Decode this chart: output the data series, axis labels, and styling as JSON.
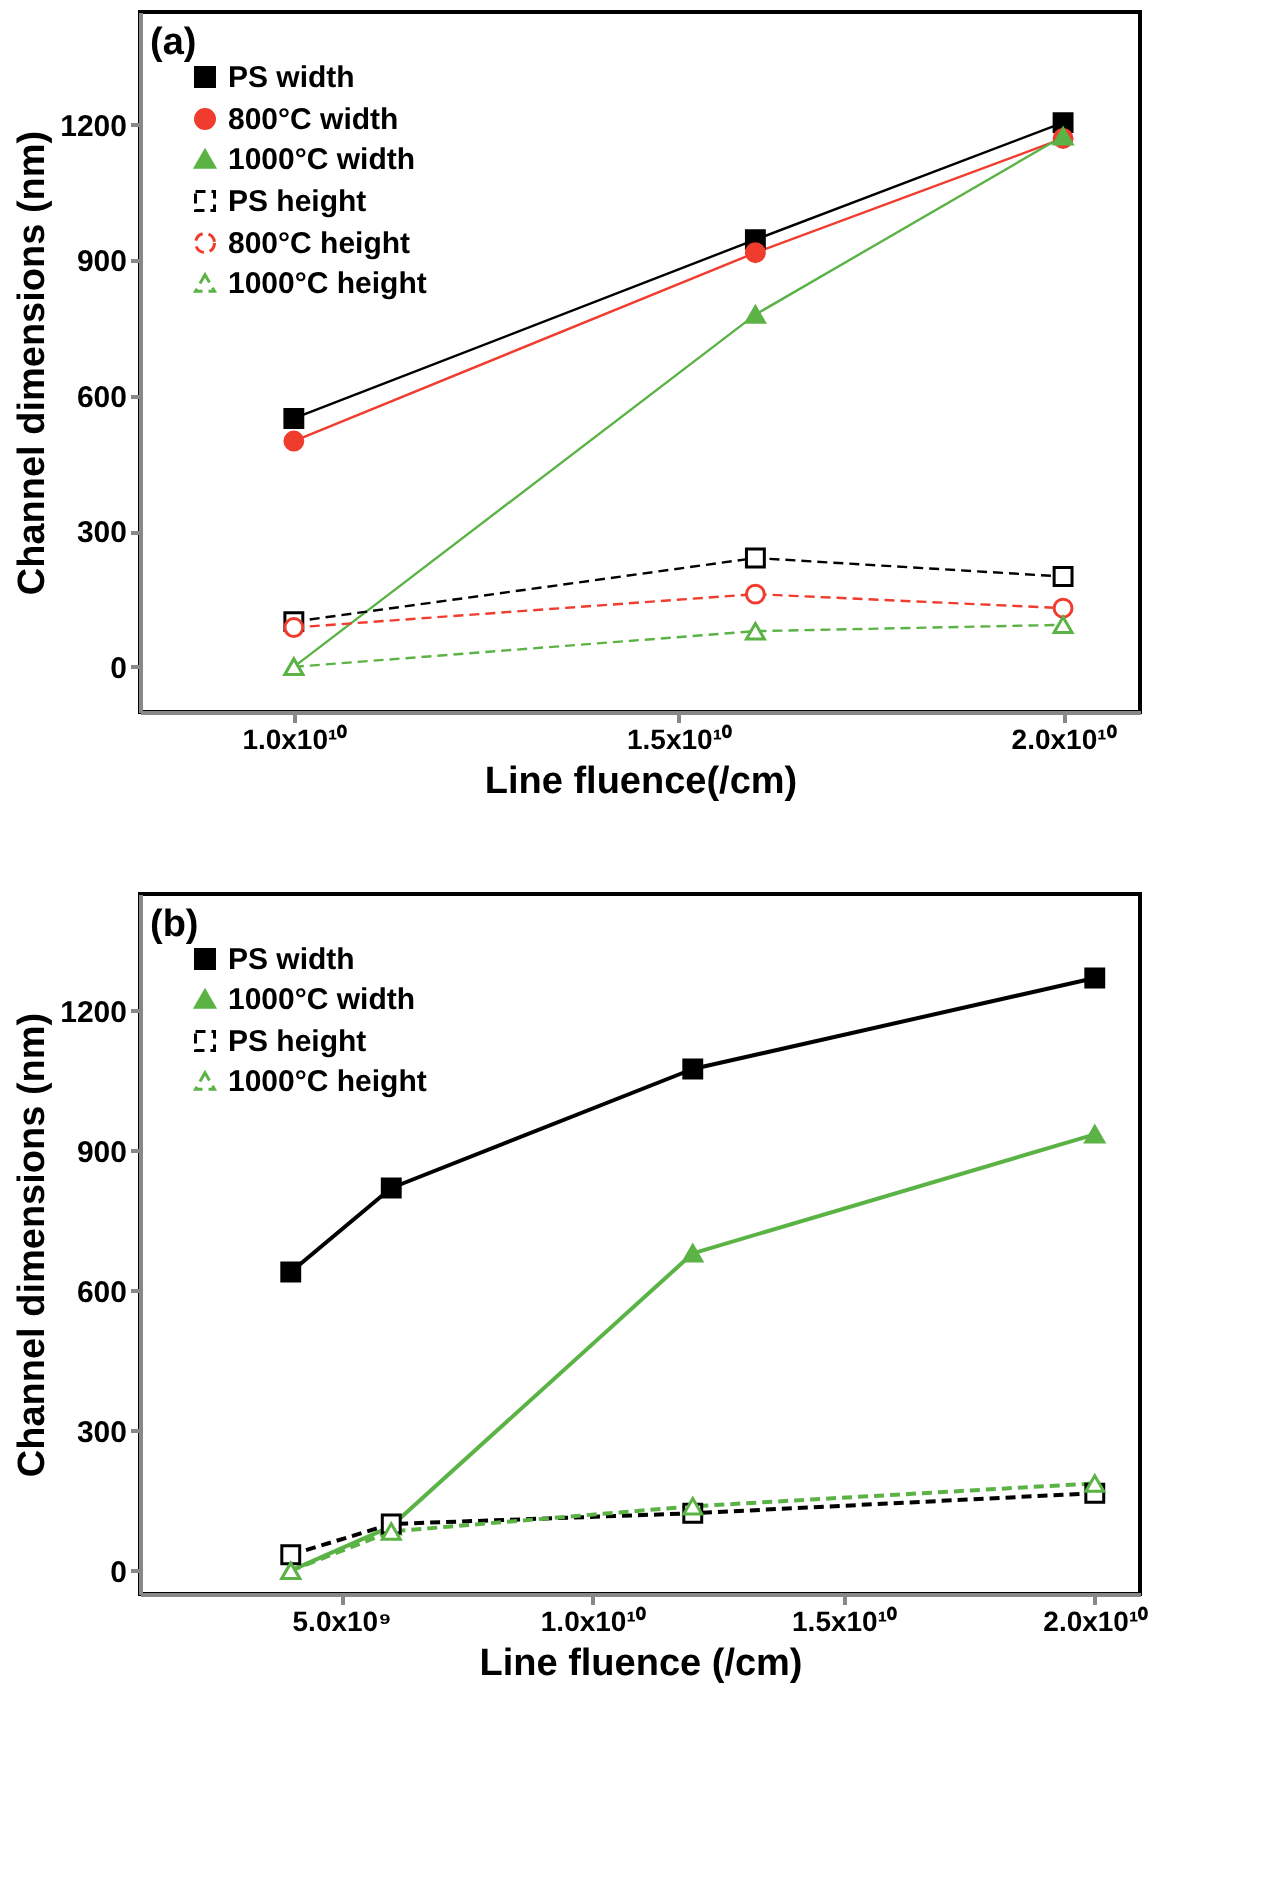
{
  "chart_data": [
    {
      "type": "line",
      "title": "(a)",
      "xlabel": "Line fluence(/cm)",
      "ylabel": "Channel dimensions (nm)",
      "xlim": [
        8000000000,
        21000000000
      ],
      "ylim": [
        -100,
        1450
      ],
      "xticks": [
        {
          "value": 10000000000,
          "label": "1.0x10¹⁰"
        },
        {
          "value": 15000000000,
          "label": "1.5x10¹⁰"
        },
        {
          "value": 20000000000,
          "label": "2.0x10¹⁰"
        }
      ],
      "yticks": [
        0,
        300,
        600,
        900,
        1200
      ],
      "grid": false,
      "legend": "top left",
      "x": [
        10000000000,
        16000000000,
        20000000000
      ],
      "series": [
        {
          "name": "PS width",
          "color": "#000000",
          "marker": "square",
          "line_style": "solid",
          "values": [
            550,
            946,
            1205
          ]
        },
        {
          "name": "800°C width",
          "color": "#f03c2e",
          "marker": "circle",
          "line_style": "solid",
          "values": [
            500,
            917,
            1170
          ]
        },
        {
          "name": "1000°C width",
          "color": "#5bb346",
          "marker": "triangle",
          "line_style": "solid",
          "values": [
            0,
            780,
            1175
          ]
        },
        {
          "name": "PS height",
          "color": "#000000",
          "marker": "square",
          "line_style": "dashed",
          "values": [
            100,
            241,
            200
          ]
        },
        {
          "name": "800°C height",
          "color": "#f03c2e",
          "marker": "circle",
          "line_style": "dashed",
          "values": [
            87,
            161,
            130
          ]
        },
        {
          "name": "1000°C height",
          "color": "#5bb346",
          "marker": "triangle",
          "line_style": "dashed",
          "values": [
            0,
            79,
            93
          ]
        }
      ]
    },
    {
      "type": "line",
      "title": "(b)",
      "xlabel": "Line fluence (/cm)",
      "ylabel": "Channel dimensions (nm)",
      "xlim": [
        1000000000,
        20900000000
      ],
      "ylim": [
        -50,
        1450
      ],
      "xticks": [
        {
          "value": 5000000000,
          "label": "5.0x10⁹"
        },
        {
          "value": 10000000000,
          "label": "1.0x10¹⁰"
        },
        {
          "value": 15000000000,
          "label": "1.5x10¹⁰"
        },
        {
          "value": 20000000000,
          "label": "2.0x10¹⁰"
        }
      ],
      "yticks": [
        0,
        300,
        600,
        900,
        1200
      ],
      "grid": false,
      "legend": "top left",
      "x": [
        4000000000,
        6000000000,
        12000000000,
        20000000000
      ],
      "series": [
        {
          "name": "PS width",
          "color": "#000000",
          "marker": "square",
          "line_style": "solid",
          "values": [
            640,
            820,
            1075,
            1270
          ]
        },
        {
          "name": "1000°C width",
          "color": "#5bb346",
          "marker": "triangle",
          "line_style": "solid",
          "values": [
            0,
            95,
            680,
            935
          ]
        },
        {
          "name": "PS height",
          "color": "#000000",
          "marker": "square",
          "line_style": "dashed",
          "values": [
            34,
            100,
            123,
            166
          ]
        },
        {
          "name": "1000°C height",
          "color": "#5bb346",
          "marker": "triangle",
          "line_style": "dashed",
          "values": [
            0,
            84,
            138,
            187
          ]
        }
      ]
    }
  ]
}
